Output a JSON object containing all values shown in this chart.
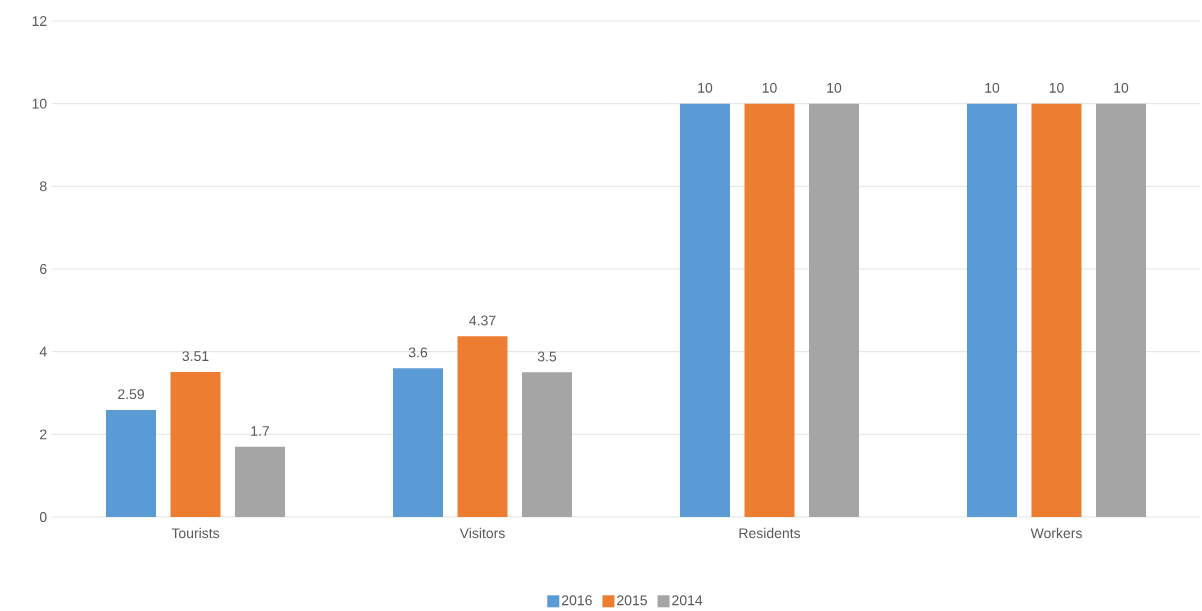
{
  "chart_data": {
    "type": "bar",
    "categories": [
      "Tourists",
      "Visitors",
      "Residents",
      "Workers"
    ],
    "series": [
      {
        "name": "2016",
        "color": "#5b9bd5",
        "values": [
          2.59,
          3.6,
          10,
          10
        ]
      },
      {
        "name": "2015",
        "color": "#ed7d31",
        "values": [
          3.51,
          4.37,
          10,
          10
        ]
      },
      {
        "name": "2014",
        "color": "#a5a5a5",
        "values": [
          1.7,
          3.5,
          10,
          10
        ]
      }
    ],
    "ylim": [
      0,
      12
    ],
    "yticks": [
      0,
      2,
      4,
      6,
      8,
      10,
      12
    ],
    "grid": "y",
    "legend": "bottom",
    "data_labels": true
  }
}
